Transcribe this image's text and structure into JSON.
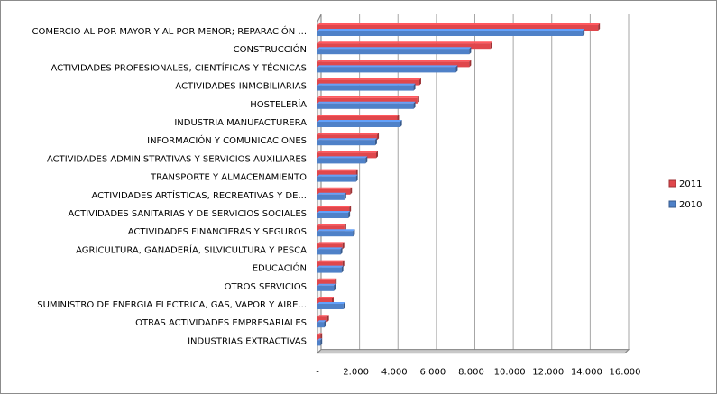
{
  "colors": {
    "series_2011": "#e0474c",
    "series_2010": "#4f81c8",
    "grid": "#a6a6a6",
    "floor": "#c8c8c8",
    "axis": "#808080"
  },
  "chart_data": {
    "type": "bar",
    "orientation": "horizontal",
    "style": "3d-clustered",
    "title": "",
    "xlabel": "",
    "ylabel": "",
    "xlim": [
      0,
      16000
    ],
    "grid": true,
    "legend_position": "right",
    "categories": [
      "COMERCIO AL POR MAYOR Y AL POR MENOR; REPARACIÓN ...",
      "CONSTRUCCIÓN",
      "ACTIVIDADES PROFESIONALES, CIENTÍFICAS Y TÉCNICAS",
      "ACTIVIDADES INMOBILIARIAS",
      "HOSTELERÍA",
      "INDUSTRIA MANUFACTURERA",
      "INFORMACIÓN Y COMUNICACIONES",
      "ACTIVIDADES ADMINISTRATIVAS Y SERVICIOS AUXILIARES",
      "TRANSPORTE Y ALMACENAMIENTO",
      "ACTIVIDADES ARTÍSTICAS, RECREATIVAS Y DE...",
      "ACTIVIDADES SANITARIAS Y DE SERVICIOS SOCIALES",
      "ACTIVIDADES FINANCIERAS Y SEGUROS",
      "AGRICULTURA, GANADERÍA, SILVICULTURA Y PESCA",
      "EDUCACIÓN",
      "OTROS SERVICIOS",
      "SUMINISTRO DE ENERGIA ELECTRICA, GAS, VAPOR Y AIRE...",
      "OTRAS ACTIVIDADES EMPRESARIALES",
      "INDUSTRIAS EXTRACTIVAS"
    ],
    "series": [
      {
        "name": "2011",
        "values": [
          14600,
          9000,
          7900,
          5300,
          5200,
          4150,
          3100,
          3050,
          2000,
          1700,
          1650,
          1400,
          1300,
          1300,
          900,
          750,
          500,
          150
        ]
      },
      {
        "name": "2010",
        "values": [
          13800,
          7900,
          7200,
          5000,
          5000,
          4300,
          3000,
          2500,
          2000,
          1400,
          1600,
          1850,
          1200,
          1250,
          850,
          1350,
          350,
          150
        ]
      }
    ],
    "x_tick_labels": [
      "-",
      "2.000",
      "4.000",
      "6.000",
      "8.000",
      "10.000",
      "12.000",
      "14.000",
      "16.000"
    ],
    "legend_order": [
      "2011",
      "2010"
    ]
  }
}
